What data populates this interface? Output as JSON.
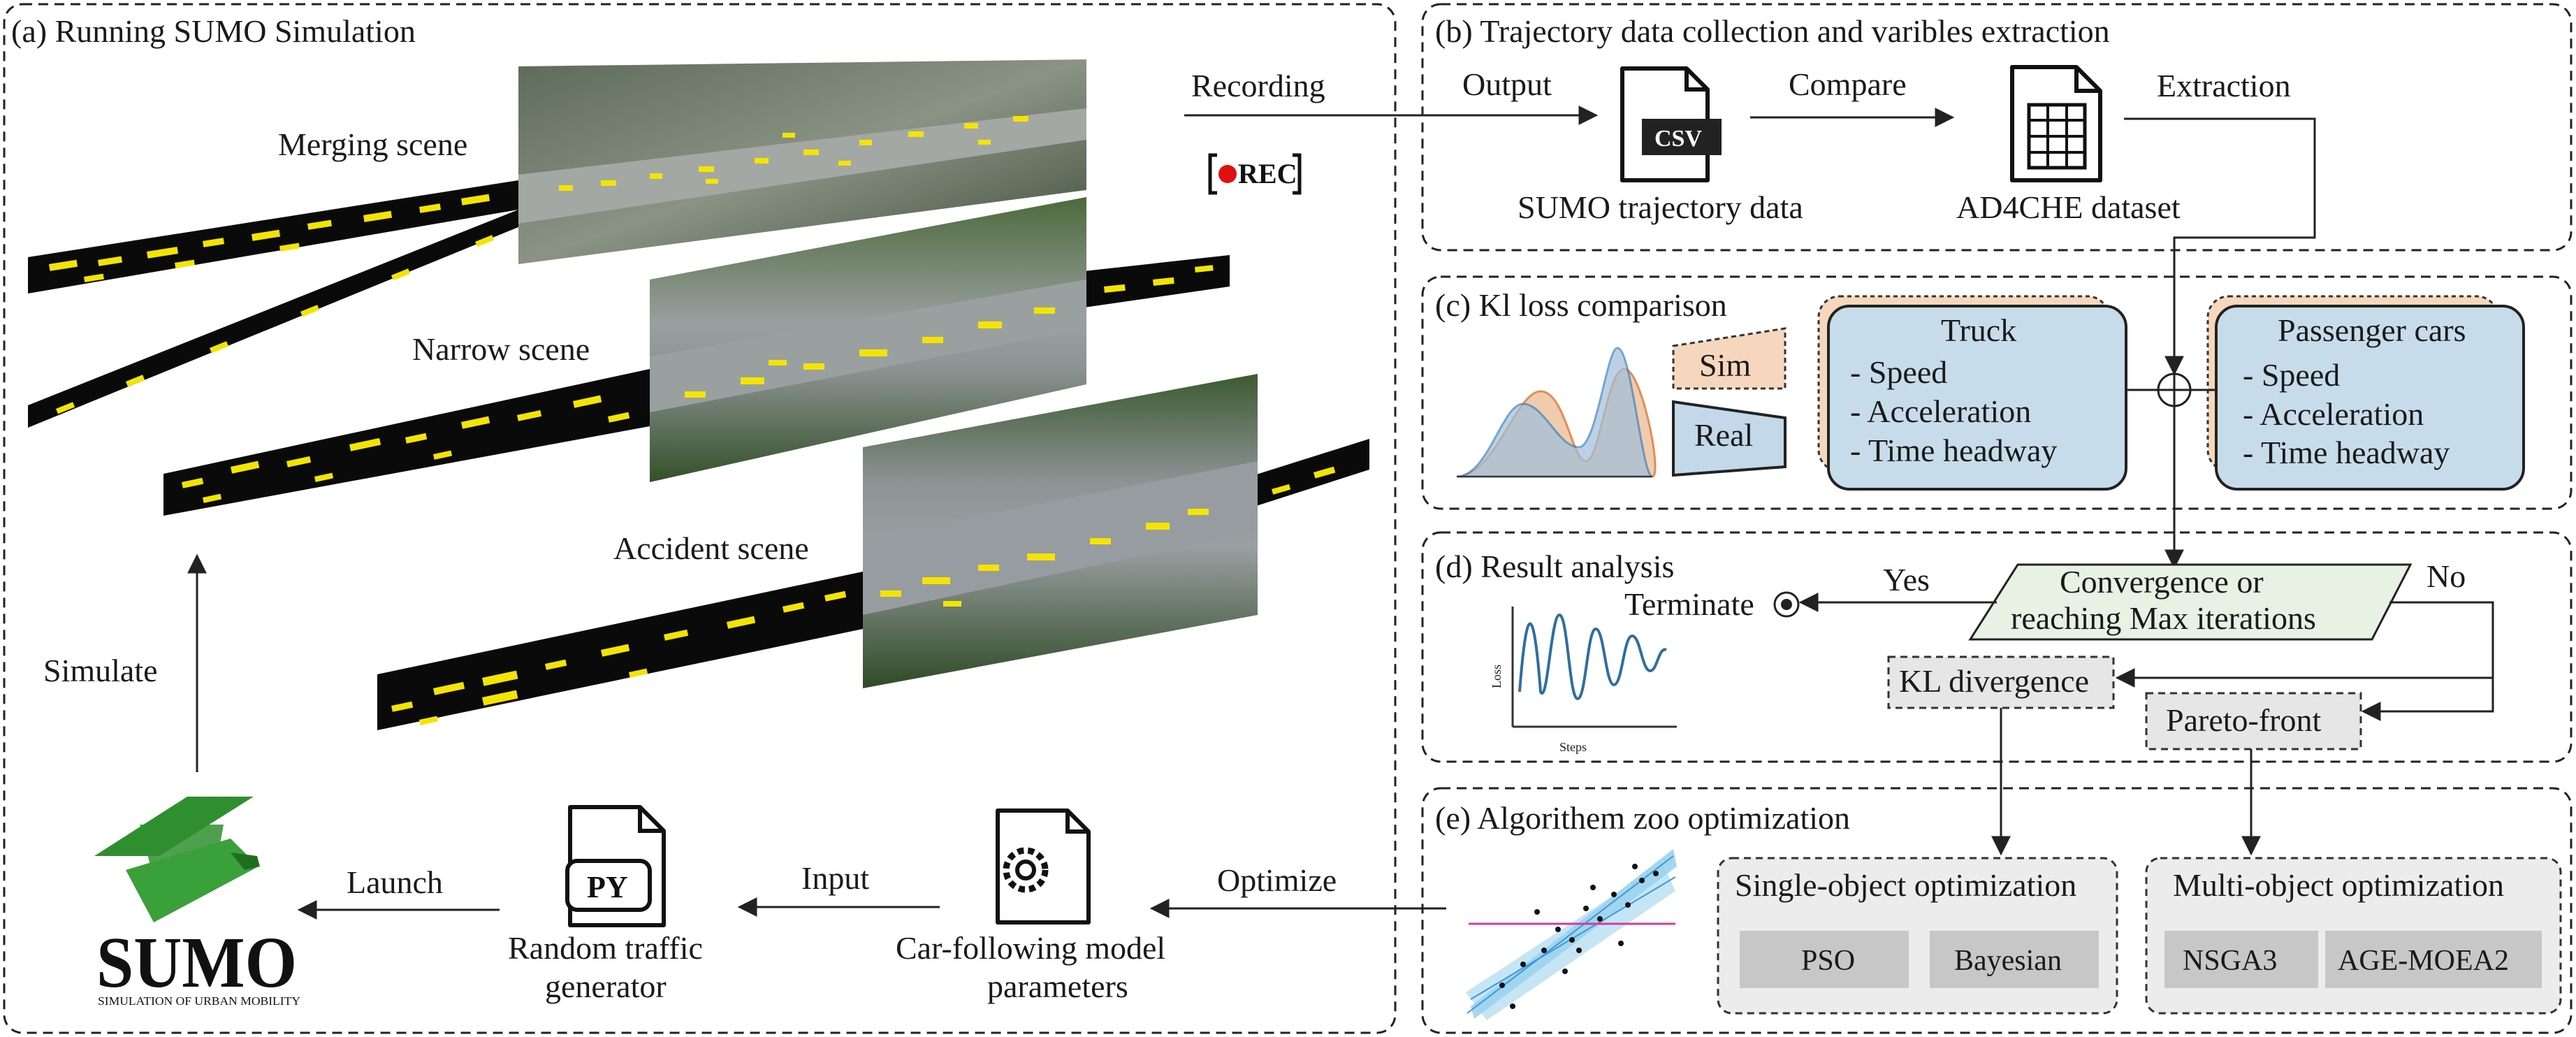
{
  "panels": {
    "a": {
      "title": "(a) Running  SUMO Simulation"
    },
    "b": {
      "title": "(b) Trajectory data collection and varibles extraction"
    },
    "c": {
      "title": "(c) Kl loss comparison"
    },
    "d": {
      "title": "(d) Result analysis"
    },
    "e": {
      "title": "(e) Algorithem zoo optimization"
    }
  },
  "scenes": {
    "merging": "Merging scene",
    "narrow": "Narrow scene",
    "accident": "Accident scene"
  },
  "rec": "REC",
  "flow": {
    "recording": "Recording",
    "output": "Output",
    "compare": "Compare",
    "extraction": "Extraction",
    "simulate": "Simulate",
    "launch": "Launch",
    "input": "Input",
    "optimize": "Optimize",
    "yes": "Yes",
    "no": "No",
    "terminate": "Terminate"
  },
  "files": {
    "csv_badge": "CSV",
    "csv_label": "SUMO trajectory data",
    "dataset_label": "AD4CHE dataset",
    "py_badge": "PY",
    "py_label_1": "Random traffic",
    "py_label_2": "generator",
    "params_label_1": "Car-following model",
    "params_label_2": "parameters"
  },
  "sumo": {
    "logo_text": "SUMO",
    "tagline": "SIMULATION OF URBAN MOBILITY"
  },
  "kl": {
    "sim": "Sim",
    "real": "Real",
    "truck": {
      "title": "Truck",
      "items": [
        "- Speed",
        "- Acceleration",
        "- Time headway"
      ]
    },
    "cars": {
      "title": "Passenger cars",
      "items": [
        "- Speed",
        "- Acceleration",
        "- Time headway"
      ]
    }
  },
  "analysis": {
    "decision_1": "Convergence or",
    "decision_2": "reaching Max iterations",
    "kl_div": "KL divergence",
    "pareto": "Pareto-front",
    "loss_axis": "Loss",
    "steps_axis": "Steps"
  },
  "zoo": {
    "single": {
      "title": "Single-object optimization",
      "algos": [
        "PSO",
        "Bayesian"
      ]
    },
    "multi": {
      "title": "Multi-object optimization",
      "algos": [
        "NSGA3",
        "AGE-MOEA2"
      ]
    }
  },
  "colors": {
    "sim_fill": "#f6d7bd",
    "real_fill": "#c3d8e8",
    "box_blue": "#c7dcea",
    "sumo_green": "#2f8f2f",
    "rec_red": "#e01010",
    "road_yellow": "#f4e400",
    "curve_blue": "#2e6f9e",
    "gray_algo": "#c7c7c7"
  }
}
